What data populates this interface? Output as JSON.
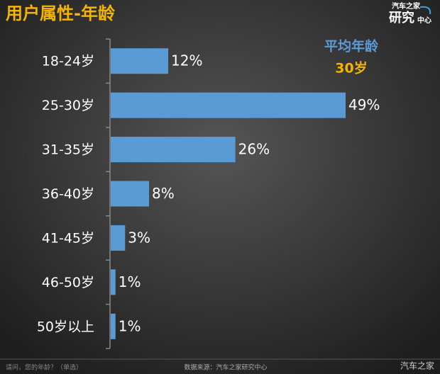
{
  "chart_data": {
    "type": "bar",
    "orientation": "horizontal",
    "title": "用户属性-年龄",
    "categories": [
      "18-24岁",
      "25-30岁",
      "31-35岁",
      "36-40岁",
      "41-45岁",
      "46-50岁",
      "50岁以上"
    ],
    "values": [
      12,
      49,
      26,
      8,
      3,
      1,
      1
    ],
    "value_labels": [
      "12%",
      "49%",
      "26%",
      "8%",
      "3%",
      "1%",
      "1%"
    ],
    "color": "#5b9bd5",
    "annotations": [
      "平均年龄",
      "30岁"
    ]
  },
  "logo": {
    "top": "汽车之家",
    "main": "研究",
    "sub": "中心"
  },
  "footer": {
    "question": "请问，您的年龄？（单选）",
    "source": "数据来源：汽车之家研究中心",
    "watermark": "汽车之家"
  }
}
